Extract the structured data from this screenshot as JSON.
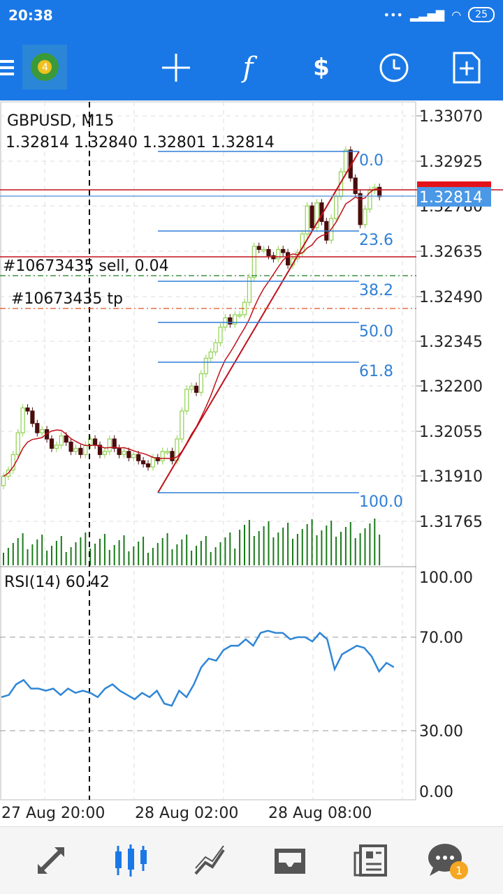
{
  "status": {
    "time": "20:38",
    "battery": "25"
  },
  "toolbar": {
    "icons": [
      "menu-icon",
      "app-logo",
      "crosshair-icon",
      "function-icon",
      "trade-icon",
      "clock-icon",
      "new-chart-icon"
    ]
  },
  "chart": {
    "symbol": "GBPUSD, M15",
    "ohlc": "1.32814 1.32840 1.32801 1.32814",
    "order_label": "#10673435 sell, 0.04",
    "tp_label": "#10673435 tp",
    "price_axis": [
      "1.33070",
      "1.32925",
      "1.32780",
      "1.32635",
      "1.32490",
      "1.32345",
      "1.32200",
      "1.32055",
      "1.31910",
      "1.31765"
    ],
    "current_price": "1.32814",
    "fib_levels": [
      "0.0",
      "23.6",
      "38.2",
      "50.0",
      "61.8",
      "100.0"
    ],
    "rsi_label": "RSI(14) 60.42",
    "rsi_axis": [
      "100.00",
      "70.00",
      "30.00",
      "0.00"
    ],
    "time_axis": [
      "27 Aug 20:00",
      "28 Aug 02:00",
      "28 Aug 08:00"
    ],
    "colors": {
      "bull": "#8fd14f",
      "bear": "#4a0d0d",
      "ma": "#c0101a",
      "fib": "#2f7fd6",
      "rsi": "#2f86d6",
      "volume": "#1a7a1a",
      "sell_line": "#c0101a",
      "tp_line": "#e05020"
    }
  },
  "nav": {
    "icons": [
      "quotes-icon",
      "chart-icon",
      "trade-icon",
      "history-icon",
      "news-icon",
      "messages-icon"
    ],
    "badge": "1"
  }
}
